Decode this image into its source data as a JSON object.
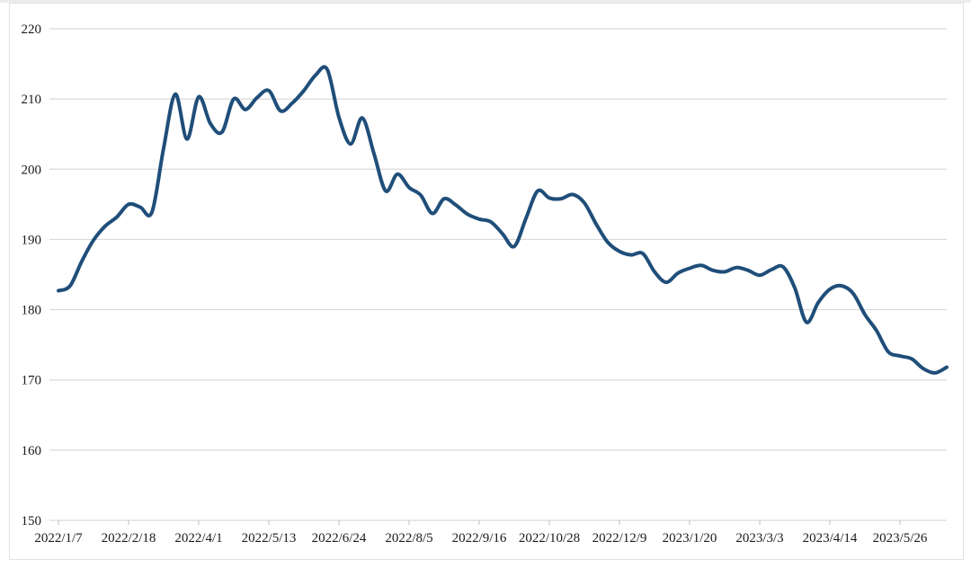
{
  "chart_data": {
    "type": "line",
    "title": "",
    "xlabel": "",
    "ylabel": "",
    "legend": "none",
    "grid": "horizontal",
    "background_color": "#ffffff",
    "gridline_color": "#d9d9d9",
    "tick_color": "#bfbfbf",
    "label_color": "#1a1a1a",
    "line_color": "#1f4e79",
    "line_width": 4,
    "smoothed": true,
    "ylim": [
      150,
      220
    ],
    "y_ticks": [
      150,
      160,
      170,
      180,
      190,
      200,
      210,
      220
    ],
    "y_tick_labels": [
      "150",
      "160",
      "170",
      "180",
      "190",
      "200",
      "210",
      "220"
    ],
    "x_tick_labels": [
      "2022/1/7",
      "2022/2/18",
      "2022/4/1",
      "2022/5/13",
      "2022/6/24",
      "2022/8/5",
      "2022/9/16",
      "2022/10/28",
      "2022/12/9",
      "2023/1/20",
      "2023/3/3",
      "2023/4/14",
      "2023/5/26"
    ],
    "x_tick_every": 6,
    "x_frequency": "weekly",
    "x_start": "2022/1/7",
    "values": [
      182.7,
      183.4,
      186.9,
      189.9,
      191.9,
      193.2,
      195.0,
      194.6,
      193.9,
      203.0,
      210.7,
      204.3,
      210.3,
      206.5,
      205.3,
      210.0,
      208.5,
      210.2,
      211.2,
      208.3,
      209.4,
      211.2,
      213.4,
      214.2,
      207.4,
      203.6,
      207.3,
      202.2,
      196.9,
      199.3,
      197.4,
      196.3,
      193.7,
      195.8,
      194.9,
      193.6,
      192.9,
      192.5,
      190.8,
      189.0,
      193.0,
      196.9,
      195.9,
      195.8,
      196.4,
      195.2,
      192.2,
      189.6,
      188.3,
      187.8,
      188.0,
      185.4,
      183.9,
      185.2,
      185.9,
      186.3,
      185.6,
      185.4,
      186.0,
      185.6,
      184.9,
      185.7,
      186.1,
      183.1,
      178.2,
      181.0,
      182.9,
      183.4,
      182.3,
      179.3,
      177.0,
      174.0,
      173.4,
      173.0,
      171.6,
      171.0,
      171.8
    ]
  }
}
